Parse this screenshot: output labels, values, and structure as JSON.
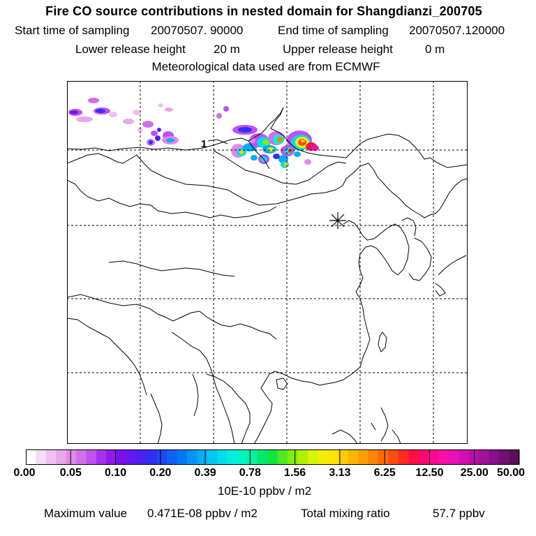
{
  "header": {
    "title": "Fire CO source contributions in nested domain for Shangdianzi_200705",
    "start_label": "Start time of sampling",
    "start_value": "20070507. 90000",
    "end_label": "End time of sampling",
    "end_value": "20070507.120000",
    "lower_label": "Lower release height",
    "lower_value": "20 m",
    "upper_label": "Upper release height",
    "upper_value": "0 m",
    "met_line": "Meteorological data used are from ECMWF"
  },
  "map": {
    "marker_symbol": "asterisk",
    "contour_label": "1",
    "grid_lines": true
  },
  "colorbar": {
    "units": "10E-10 ppbv / m2",
    "tick_labels": [
      "0.00",
      "0.05",
      "0.10",
      "0.20",
      "0.39",
      "0.78",
      "1.56",
      "3.13",
      "6.25",
      "12.50",
      "25.00",
      "50.00"
    ],
    "colors": [
      "#ffffff",
      "#f6dcf6",
      "#f0c0f0",
      "#eaa6ea",
      "#e08ae8",
      "#d070e8",
      "#c050f0",
      "#a830f0",
      "#9018f0",
      "#7a10f0",
      "#6418f0",
      "#4c20f0",
      "#3030f0",
      "#1f48f5",
      "#1060f5",
      "#0078f5",
      "#0094f5",
      "#00acf5",
      "#00c6f0",
      "#00ddec",
      "#00efe0",
      "#00f5c0",
      "#00f0a0",
      "#00ea70",
      "#10e640",
      "#50e820",
      "#80ec10",
      "#b0f000",
      "#d8f400",
      "#f0f000",
      "#ffe400",
      "#ffcc00",
      "#ffb400",
      "#ff9c00",
      "#ff8400",
      "#ff6c00",
      "#ff4c10",
      "#ff2c20",
      "#ff1040",
      "#ff0870",
      "#ff0890",
      "#f810a8",
      "#e810b8",
      "#d010b0",
      "#b810a8",
      "#a01098",
      "#881088",
      "#701070",
      "#581058"
    ]
  },
  "footer": {
    "max_label": "Maximum value",
    "max_value": "0.471E-08 ppbv / m2",
    "total_label": "Total mixing ratio",
    "total_value": "57.7 ppbv"
  }
}
